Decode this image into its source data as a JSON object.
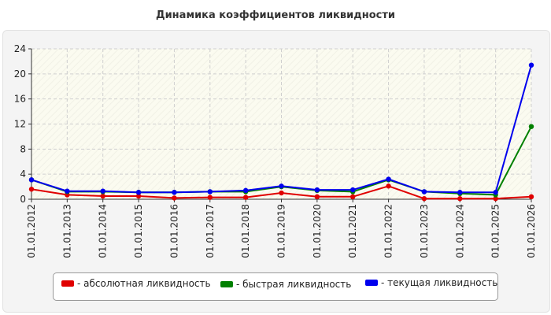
{
  "title": "Динамика коэффициентов ликвидности",
  "chart_data": {
    "type": "line",
    "title": "Динамика коэффициентов ликвидности",
    "categories": [
      "01.01.2012",
      "01.01.2013",
      "01.01.2014",
      "01.01.2015",
      "01.01.2016",
      "01.01.2017",
      "01.01.2018",
      "01.01.2019",
      "01.01.2020",
      "01.01.2021",
      "01.01.2022",
      "01.01.2023",
      "01.01.2024",
      "01.01.2025",
      "01.01.2026"
    ],
    "ylim": [
      0,
      24
    ],
    "yticks": [
      "0",
      "4",
      "8",
      "12",
      "16",
      "20",
      "24"
    ],
    "grid": true,
    "legend_position": "bottom",
    "series": [
      {
        "name": "- абсолютная ликвидность",
        "color": "#e00000",
        "values": [
          1.6,
          0.7,
          0.5,
          0.5,
          0.2,
          0.3,
          0.3,
          1.0,
          0.4,
          0.4,
          2.1,
          0.1,
          0.1,
          0.1,
          0.4
        ]
      },
      {
        "name": "- быстрая ликвидность",
        "color": "#008000",
        "values": [
          3.1,
          1.2,
          1.2,
          1.1,
          1.1,
          1.2,
          1.2,
          2.0,
          1.4,
          1.2,
          3.1,
          1.2,
          0.9,
          0.7,
          11.6
        ]
      },
      {
        "name": "- текущая ликвидность",
        "color": "#0000ee",
        "values": [
          3.1,
          1.3,
          1.3,
          1.1,
          1.1,
          1.2,
          1.4,
          2.1,
          1.5,
          1.5,
          3.2,
          1.2,
          1.1,
          1.1,
          21.4
        ]
      }
    ]
  }
}
